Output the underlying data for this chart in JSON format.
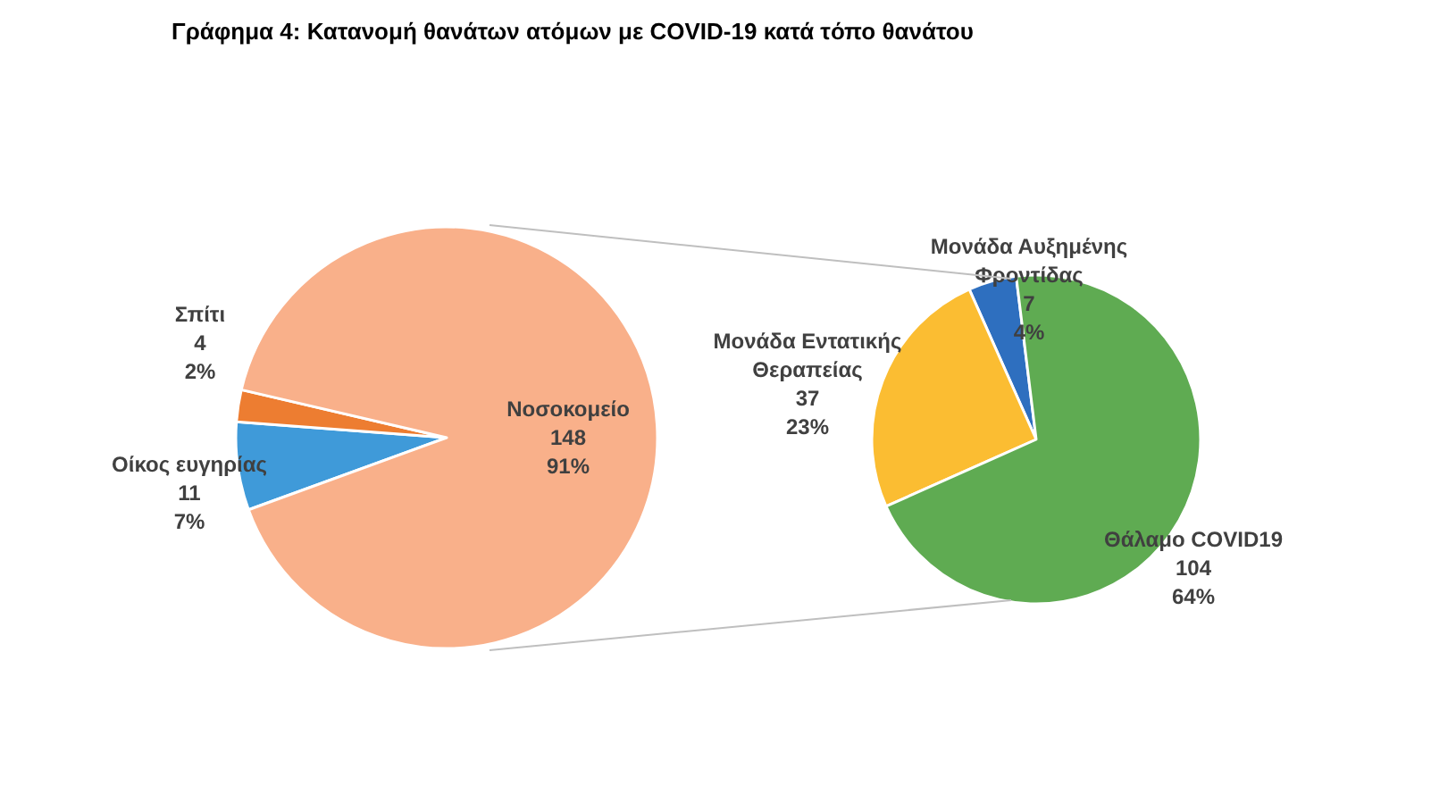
{
  "chart_data": [
    {
      "type": "pie",
      "title": "Γράφημα 4: Κατανομή θανάτων ατόμων με COVID-19 κατά τόπο θανάτου",
      "categories": [
        "Οίκος ευγηρίας",
        "Σπίτι",
        "Νοσοκομείο"
      ],
      "values": [
        11,
        4,
        148
      ],
      "colors": [
        "#3f9ad9",
        "#ed7d31",
        "#f9b08a"
      ],
      "value_labels": [
        "11\n7%",
        "4\n2%",
        "148\n91%"
      ]
    },
    {
      "type": "pie",
      "categories": [
        "Μονάδα Αυξημένης\nΦροντίδας",
        "Μονάδα Εντατικής\nΘεραπείας",
        "Θάλαμο COVID19"
      ],
      "values": [
        7,
        37,
        104
      ],
      "colors": [
        "#2e6fbf",
        "#fbbd32",
        "#5fab52"
      ],
      "value_labels": [
        "7\n4%",
        "37\n23%",
        "104\n64%"
      ]
    }
  ]
}
